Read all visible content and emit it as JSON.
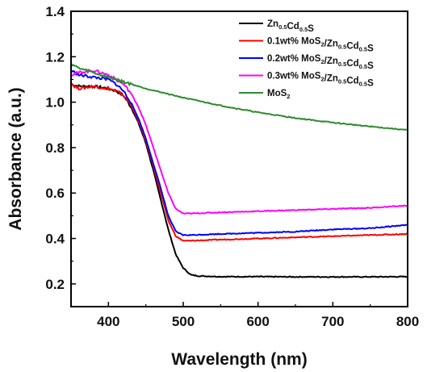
{
  "chart_data": {
    "type": "line",
    "title": "",
    "xlabel": "Wavelength (nm)",
    "ylabel": "Absorbance (a.u.)",
    "xlim": [
      350,
      800
    ],
    "ylim": [
      0.1,
      1.4
    ],
    "x_ticks": [
      400,
      500,
      600,
      700,
      800
    ],
    "y_ticks": [
      0.2,
      0.4,
      0.6,
      0.8,
      1.0,
      1.2,
      1.4
    ],
    "x_tick_labels": [
      "400",
      "500",
      "600",
      "700",
      "800"
    ],
    "y_tick_labels": [
      "0.2",
      "0.4",
      "0.6",
      "0.8",
      "1.0",
      "1.2",
      "1.4"
    ],
    "grid": false,
    "legend_position": "top-right",
    "series": [
      {
        "name": "Zn0.5Cd0.5S",
        "legend_parts": [
          [
            "Zn",
            ""
          ],
          [
            "0.5",
            "sub"
          ],
          [
            "Cd",
            ""
          ],
          [
            "0.5",
            "sub"
          ],
          [
            "S",
            ""
          ]
        ],
        "color": "#000000",
        "points": [
          [
            350,
            1.08
          ],
          [
            360,
            1.07
          ],
          [
            380,
            1.07
          ],
          [
            400,
            1.06
          ],
          [
            410,
            1.05
          ],
          [
            420,
            1.03
          ],
          [
            430,
            0.98
          ],
          [
            440,
            0.91
          ],
          [
            450,
            0.82
          ],
          [
            460,
            0.7
          ],
          [
            470,
            0.57
          ],
          [
            480,
            0.44
          ],
          [
            490,
            0.33
          ],
          [
            500,
            0.27
          ],
          [
            510,
            0.24
          ],
          [
            520,
            0.235
          ],
          [
            550,
            0.232
          ],
          [
            600,
            0.232
          ],
          [
            650,
            0.231
          ],
          [
            700,
            0.231
          ],
          [
            750,
            0.231
          ],
          [
            800,
            0.232
          ]
        ]
      },
      {
        "name": "0.1wt% MoS2/Zn0.5Cd0.5S",
        "legend_parts": [
          [
            "0.1wt% MoS",
            ""
          ],
          [
            "2",
            "sub"
          ],
          [
            "/Zn",
            ""
          ],
          [
            "0.5",
            "sub"
          ],
          [
            "Cd",
            ""
          ],
          [
            "0.5",
            "sub"
          ],
          [
            "S",
            ""
          ]
        ],
        "color": "#ff0000",
        "points": [
          [
            350,
            1.08
          ],
          [
            360,
            1.06
          ],
          [
            380,
            1.07
          ],
          [
            400,
            1.06
          ],
          [
            410,
            1.05
          ],
          [
            420,
            1.03
          ],
          [
            430,
            0.99
          ],
          [
            440,
            0.92
          ],
          [
            450,
            0.83
          ],
          [
            460,
            0.72
          ],
          [
            470,
            0.6
          ],
          [
            480,
            0.48
          ],
          [
            490,
            0.41
          ],
          [
            500,
            0.39
          ],
          [
            510,
            0.39
          ],
          [
            550,
            0.395
          ],
          [
            600,
            0.4
          ],
          [
            650,
            0.405
          ],
          [
            700,
            0.41
          ],
          [
            750,
            0.415
          ],
          [
            800,
            0.42
          ]
        ]
      },
      {
        "name": "0.2wt% MoS2/Zn0.5Cd0.5S",
        "legend_parts": [
          [
            "0.2wt% MoS",
            ""
          ],
          [
            "2",
            "sub"
          ],
          [
            "/Zn",
            ""
          ],
          [
            "0.5",
            "sub"
          ],
          [
            "Cd",
            ""
          ],
          [
            "0.5",
            "sub"
          ],
          [
            "S",
            ""
          ]
        ],
        "color": "#0000ff",
        "points": [
          [
            350,
            1.14
          ],
          [
            360,
            1.12
          ],
          [
            380,
            1.11
          ],
          [
            400,
            1.1
          ],
          [
            410,
            1.08
          ],
          [
            420,
            1.05
          ],
          [
            430,
            1.0
          ],
          [
            440,
            0.93
          ],
          [
            450,
            0.84
          ],
          [
            460,
            0.73
          ],
          [
            470,
            0.62
          ],
          [
            480,
            0.5
          ],
          [
            490,
            0.43
          ],
          [
            500,
            0.415
          ],
          [
            510,
            0.415
          ],
          [
            550,
            0.42
          ],
          [
            600,
            0.425
          ],
          [
            650,
            0.43
          ],
          [
            700,
            0.44
          ],
          [
            750,
            0.445
          ],
          [
            800,
            0.46
          ]
        ]
      },
      {
        "name": "0.3wt% MoS2/Zn0.5Cd0.5S",
        "legend_parts": [
          [
            "0.3wt% MoS",
            ""
          ],
          [
            "2",
            "sub"
          ],
          [
            "/Zn",
            ""
          ],
          [
            "0.5",
            "sub"
          ],
          [
            "Cd",
            ""
          ],
          [
            "0.5",
            "sub"
          ],
          [
            "S",
            ""
          ]
        ],
        "color": "#ff00ff",
        "points": [
          [
            350,
            1.12
          ],
          [
            360,
            1.13
          ],
          [
            380,
            1.14
          ],
          [
            400,
            1.12
          ],
          [
            410,
            1.1
          ],
          [
            420,
            1.08
          ],
          [
            430,
            1.04
          ],
          [
            440,
            0.98
          ],
          [
            450,
            0.9
          ],
          [
            460,
            0.8
          ],
          [
            470,
            0.7
          ],
          [
            480,
            0.6
          ],
          [
            490,
            0.53
          ],
          [
            500,
            0.51
          ],
          [
            510,
            0.51
          ],
          [
            550,
            0.515
          ],
          [
            600,
            0.52
          ],
          [
            650,
            0.525
          ],
          [
            700,
            0.53
          ],
          [
            750,
            0.535
          ],
          [
            800,
            0.545
          ]
        ]
      },
      {
        "name": "MoS2",
        "legend_parts": [
          [
            "MoS",
            ""
          ],
          [
            "2",
            "sub"
          ]
        ],
        "color": "#2e8b2e",
        "points": [
          [
            350,
            1.17
          ],
          [
            360,
            1.15
          ],
          [
            380,
            1.13
          ],
          [
            400,
            1.11
          ],
          [
            420,
            1.09
          ],
          [
            450,
            1.06
          ],
          [
            500,
            1.02
          ],
          [
            550,
            0.985
          ],
          [
            600,
            0.955
          ],
          [
            650,
            0.93
          ],
          [
            700,
            0.91
          ],
          [
            750,
            0.893
          ],
          [
            800,
            0.877
          ]
        ]
      }
    ]
  }
}
